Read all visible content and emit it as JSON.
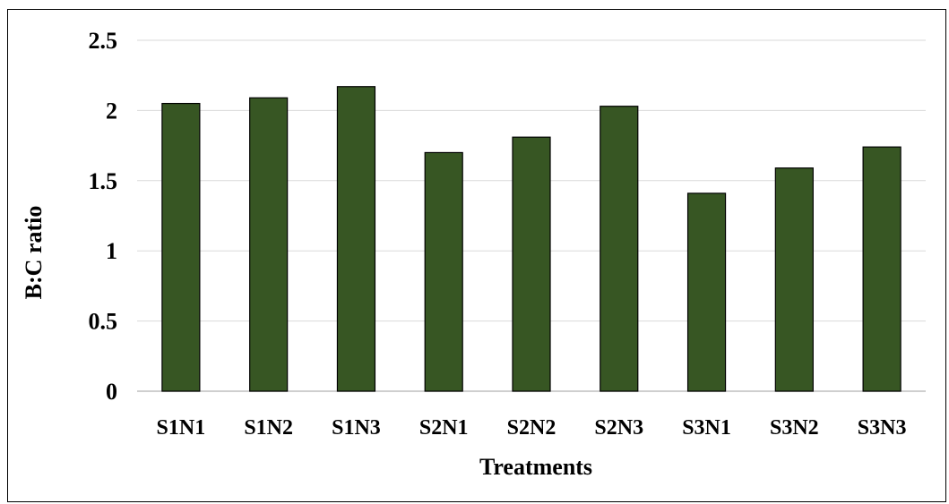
{
  "chart_data": {
    "type": "bar",
    "title": "",
    "xlabel": "Treatments",
    "ylabel": "B:C ratio",
    "categories": [
      "S1N1",
      "S1N2",
      "S1N3",
      "S2N1",
      "S2N2",
      "S2N3",
      "S3N1",
      "S3N2",
      "S3N3"
    ],
    "values": [
      2.05,
      2.09,
      2.17,
      1.7,
      1.81,
      2.03,
      1.41,
      1.59,
      1.74
    ],
    "ylim": [
      0,
      2.5
    ],
    "yticks": [
      "0",
      "0.5",
      "1",
      "1.5",
      "2",
      "2.5"
    ],
    "grid": true,
    "legend": "none",
    "colors": {
      "bar_fill": "#375623",
      "bar_stroke": "#000000",
      "grid": "#d9d9d9",
      "axis": "#bfbfbf"
    }
  }
}
